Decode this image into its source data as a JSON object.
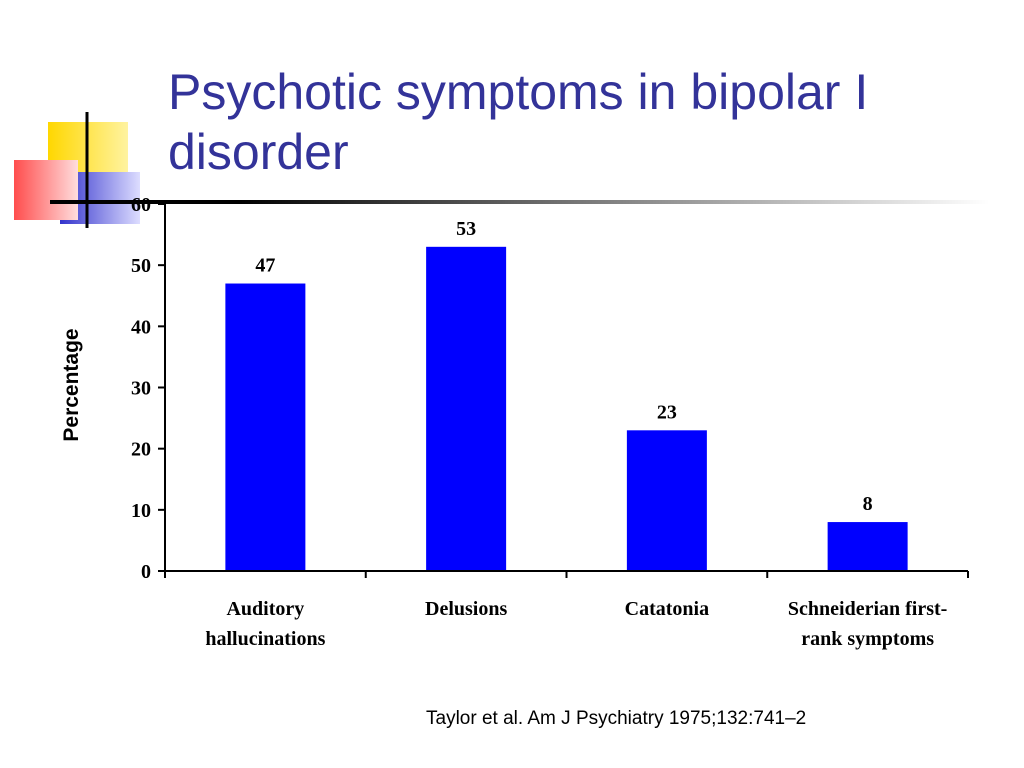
{
  "slide": {
    "title": "Psychotic symptoms in bipolar I disorder",
    "citation": "Taylor et al. Am J Psychiatry 1975;132:741–2",
    "title_color": "#333399",
    "deco_colors": {
      "yellow": "#FFD700",
      "red": "#FF4D4D",
      "blue": "#3333CC"
    }
  },
  "chart_data": {
    "type": "bar",
    "title": "",
    "xlabel": "",
    "ylabel": "Percentage",
    "categories": [
      "Auditory hallucinations",
      "Delusions",
      "Catatonia",
      "Schneiderian first-rank symptoms"
    ],
    "values": [
      47,
      53,
      23,
      8
    ],
    "data_labels": [
      "47",
      "53",
      "23",
      "8"
    ],
    "ylim": [
      0,
      60
    ],
    "yticks": [
      0,
      10,
      20,
      30,
      40,
      50,
      60
    ],
    "grid": false,
    "legend": "none",
    "bar_color": "#0000FF"
  }
}
